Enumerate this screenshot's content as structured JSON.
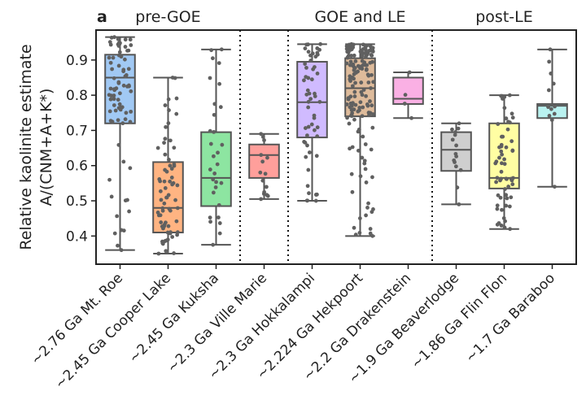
{
  "chart_data": {
    "type": "box",
    "panel_label": "a",
    "ylabel_line1": "Relative kaolinite estimate",
    "ylabel_line2": "A/(CNM+A+K*)",
    "ylim": [
      0.32,
      0.985
    ],
    "yticks": [
      0.4,
      0.5,
      0.6,
      0.7,
      0.8,
      0.9
    ],
    "grid": false,
    "groups": [
      {
        "label": "pre-GOE",
        "start": 0,
        "end": 2
      },
      {
        "label": "GOE and LE",
        "start": 4,
        "end": 6
      },
      {
        "label": "post-LE",
        "start": 7,
        "end": 9
      }
    ],
    "dividers_after": [
      2,
      3,
      6
    ],
    "categories": [
      "~2.76 Ga Mt. Roe",
      "~2.45 Ga Cooper Lake",
      "~2.45 Ga Kuksha",
      "~2.3 Ga Ville Marie",
      "~2.3 Ga Hokkalampi",
      "~2.224 Ga Hekpoort",
      "~2.2 Ga Drakenstein",
      "~1.9 Ga Beaverlodge",
      "~1.86 Ga Flin Flon",
      "~1.7 Ga Baraboo"
    ],
    "boxes": [
      {
        "min": 0.36,
        "q1": 0.72,
        "median": 0.85,
        "q3": 0.915,
        "max": 0.965,
        "n": 80,
        "color": "#a1c9f4"
      },
      {
        "min": 0.35,
        "q1": 0.41,
        "median": 0.48,
        "q3": 0.61,
        "max": 0.85,
        "n": 70,
        "color": "#ffb482"
      },
      {
        "min": 0.375,
        "q1": 0.485,
        "median": 0.565,
        "q3": 0.695,
        "max": 0.93,
        "n": 30,
        "color": "#8de5a1"
      },
      {
        "min": 0.505,
        "q1": 0.565,
        "median": 0.63,
        "q3": 0.66,
        "max": 0.69,
        "n": 15,
        "color": "#ff9f9b"
      },
      {
        "min": 0.5,
        "q1": 0.68,
        "median": 0.78,
        "q3": 0.895,
        "max": 0.945,
        "n": 55,
        "color": "#d0bbff"
      },
      {
        "min": 0.4,
        "q1": 0.74,
        "median": 0.82,
        "q3": 0.905,
        "max": 0.945,
        "n": 150,
        "color": "#debb9b"
      },
      {
        "min": 0.735,
        "q1": 0.775,
        "median": 0.79,
        "q3": 0.85,
        "max": 0.865,
        "n": 4,
        "color": "#fab0e4"
      },
      {
        "min": 0.49,
        "q1": 0.585,
        "median": 0.645,
        "q3": 0.695,
        "max": 0.72,
        "n": 15,
        "color": "#cfcfcf"
      },
      {
        "min": 0.42,
        "q1": 0.535,
        "median": 0.565,
        "q3": 0.72,
        "max": 0.8,
        "n": 60,
        "color": "#fffea3"
      },
      {
        "min": 0.54,
        "q1": 0.735,
        "median": 0.77,
        "q3": 0.775,
        "max": 0.93,
        "n": 12,
        "color": "#b9f2f0"
      }
    ]
  }
}
